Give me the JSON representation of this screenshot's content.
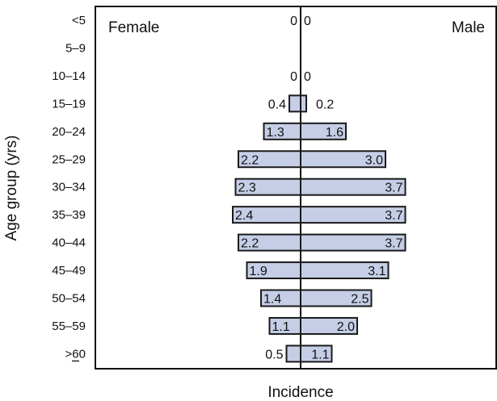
{
  "chart_data": {
    "type": "bar",
    "orientation": "horizontal-pyramid",
    "title": "",
    "xlabel": "Incidence",
    "ylabel": "Age group (yrs)",
    "categories": [
      "<5",
      "5–9",
      "10–14",
      "15–19",
      "20–24",
      "25–29",
      "30–34",
      "35–39",
      "40–44",
      "45–49",
      "50–54",
      "55–59",
      "≥60"
    ],
    "series": [
      {
        "name": "Female",
        "values": [
          0,
          null,
          0,
          0.4,
          1.3,
          2.2,
          2.3,
          2.4,
          2.2,
          1.9,
          1.4,
          1.1,
          0.5
        ],
        "labels": [
          "0",
          "",
          "0",
          "0.4",
          "1.3",
          "2.2",
          "2.3",
          "2.4",
          "2.2",
          "1.9",
          "1.4",
          "1.1",
          "0.5"
        ]
      },
      {
        "name": "Male",
        "values": [
          0,
          null,
          0,
          0.2,
          1.6,
          3.0,
          3.7,
          3.7,
          3.7,
          3.1,
          2.5,
          2.0,
          1.1
        ],
        "labels": [
          "0",
          "",
          "0",
          "0.2",
          "1.6",
          "3.0",
          "3.7",
          "3.7",
          "3.7",
          "3.1",
          "2.5",
          "2.0",
          "1.1"
        ]
      }
    ],
    "bar_color": "#c5cee6",
    "bar_edge_color": "#1a1a1a",
    "grid": false,
    "legend": "none"
  }
}
